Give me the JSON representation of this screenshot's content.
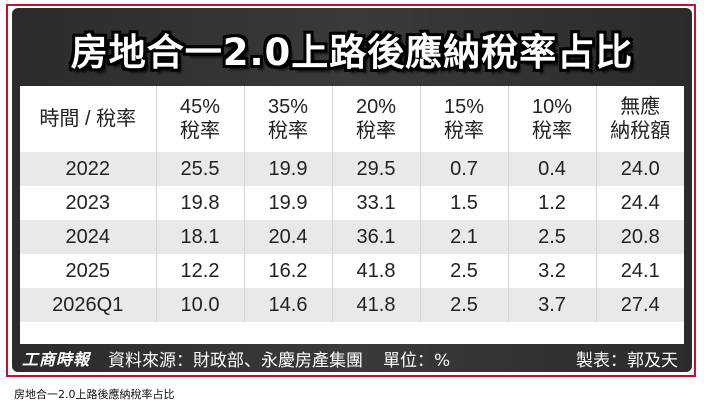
{
  "title": "房地合一2.0上路後應納稅率占比",
  "columns": [
    [
      "時間 / 稅率"
    ],
    [
      "45%",
      "稅率"
    ],
    [
      "35%",
      "稅率"
    ],
    [
      "20%",
      "稅率"
    ],
    [
      "15%",
      "稅率"
    ],
    [
      "10%",
      "稅率"
    ],
    [
      "無應",
      "納稅額"
    ]
  ],
  "rows": [
    [
      "2022",
      "25.5",
      "19.9",
      "29.5",
      "0.7",
      "0.4",
      "24.0"
    ],
    [
      "2023",
      "19.8",
      "19.9",
      "33.1",
      "1.5",
      "1.2",
      "24.4"
    ],
    [
      "2024",
      "18.1",
      "20.4",
      "36.1",
      "2.1",
      "2.5",
      "20.8"
    ],
    [
      "2025",
      "12.2",
      "16.2",
      "41.8",
      "2.5",
      "3.2",
      "24.1"
    ],
    [
      "2026Q1",
      "10.0",
      "14.6",
      "41.8",
      "2.5",
      "3.7",
      "27.4"
    ]
  ],
  "footer": {
    "logo": "工商時報",
    "source": "資料來源：財政部、永慶房產集團",
    "unit": "單位：%",
    "maker": "製表：郭及天"
  },
  "caption": "房地合一2.0上路後應納稅率占比",
  "colors": {
    "frame_border": "#c8102e",
    "graphic_background": "#2b2b2b",
    "row_stripe": "#e9e9eb"
  }
}
